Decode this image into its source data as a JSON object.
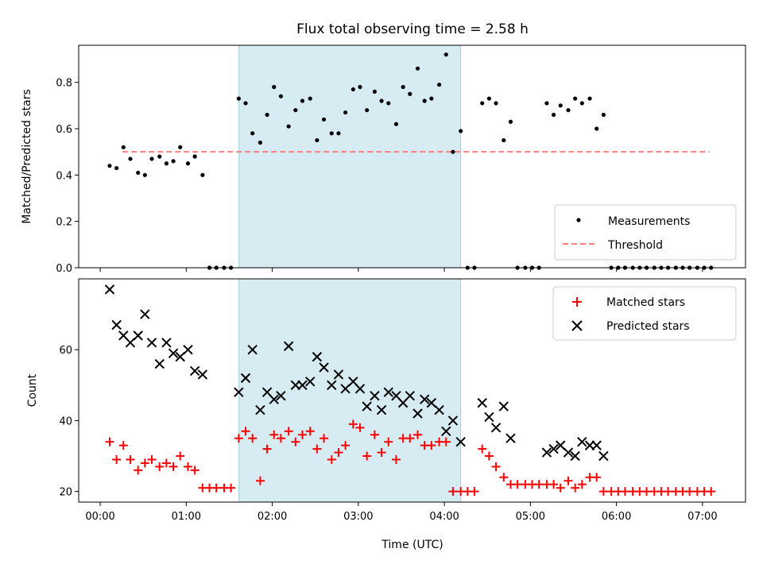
{
  "chart_data": [
    {
      "type": "scatter",
      "title": "Flux total observing time = 2.58 h",
      "xlabel": "",
      "ylabel": "Matched/Predicted stars",
      "ylim": [
        0,
        0.96
      ],
      "yticks": [
        "0.0",
        "0.2",
        "0.4",
        "0.6",
        "0.8"
      ],
      "highlight_span": {
        "x": [
          1.613,
          4.19
        ],
        "color": "#add8e6"
      },
      "legend": {
        "position": "lower-right"
      },
      "series": [
        {
          "name": "Measurements",
          "marker": "dot",
          "color": "#000000",
          "x": [
            0.11,
            0.19,
            0.27,
            0.35,
            0.44,
            0.52,
            0.6,
            0.69,
            0.77,
            0.85,
            0.93,
            1.02,
            1.1,
            1.19,
            1.27,
            1.35,
            1.44,
            1.52,
            1.61,
            1.69,
            1.77,
            1.86,
            1.94,
            2.02,
            2.1,
            2.19,
            2.27,
            2.35,
            2.44,
            2.52,
            2.6,
            2.69,
            2.77,
            2.85,
            2.94,
            3.02,
            3.1,
            3.19,
            3.27,
            3.35,
            3.44,
            3.52,
            3.6,
            3.69,
            3.77,
            3.85,
            3.94,
            4.02,
            4.1,
            4.19,
            4.27,
            4.35,
            4.44,
            4.52,
            4.6,
            4.69,
            4.77,
            4.85,
            4.94,
            5.02,
            5.1,
            5.19,
            5.27,
            5.35,
            5.44,
            5.52,
            5.6,
            5.69,
            5.77,
            5.85,
            5.94,
            6.02,
            6.1,
            6.19,
            6.27,
            6.35,
            6.44,
            6.52,
            6.6,
            6.69,
            6.77,
            6.85,
            6.94,
            7.02,
            7.1
          ],
          "y": [
            0.44,
            0.43,
            0.52,
            0.47,
            0.41,
            0.4,
            0.47,
            0.48,
            0.45,
            0.46,
            0.52,
            0.45,
            0.48,
            0.4,
            0,
            0,
            0,
            0,
            0.73,
            0.71,
            0.58,
            0.54,
            0.66,
            0.78,
            0.74,
            0.61,
            0.68,
            0.72,
            0.73,
            0.55,
            0.64,
            0.58,
            0.58,
            0.67,
            0.77,
            0.78,
            0.68,
            0.76,
            0.72,
            0.71,
            0.62,
            0.78,
            0.75,
            0.86,
            0.72,
            0.73,
            0.79,
            0.92,
            0.5,
            0.59,
            0,
            0,
            0.71,
            0.73,
            0.71,
            0.55,
            0.63,
            0,
            0,
            0,
            0,
            0.71,
            0.66,
            0.7,
            0.68,
            0.73,
            0.71,
            0.73,
            0.6,
            0.66,
            0,
            0,
            0,
            0,
            0,
            0,
            0,
            0,
            0,
            0,
            0,
            0,
            0,
            0,
            0
          ]
        },
        {
          "name": "Threshold",
          "marker": "dashed-line",
          "color": "#ff7f7f",
          "x": [
            0.26,
            7.08
          ],
          "y": [
            0.5,
            0.5
          ]
        }
      ]
    },
    {
      "type": "scatter",
      "title": "",
      "xlabel": "Time (UTC)",
      "ylabel": "Count",
      "xlim_hours": [
        -0.25,
        7.5
      ],
      "ylim": [
        17,
        80
      ],
      "xticks": [
        "00:00",
        "01:00",
        "02:00",
        "03:00",
        "04:00",
        "05:00",
        "06:00",
        "07:00"
      ],
      "yticks": [
        "20",
        "40",
        "60"
      ],
      "highlight_span": {
        "x": [
          1.613,
          4.19
        ],
        "color": "#add8e6"
      },
      "legend": {
        "position": "upper-right"
      },
      "series": [
        {
          "name": "Matched stars",
          "marker": "plus",
          "color": "#ff0000",
          "x": [
            0.11,
            0.19,
            0.27,
            0.35,
            0.44,
            0.52,
            0.6,
            0.69,
            0.77,
            0.85,
            0.93,
            1.02,
            1.1,
            1.19,
            1.27,
            1.35,
            1.44,
            1.52,
            1.61,
            1.69,
            1.77,
            1.86,
            1.94,
            2.02,
            2.1,
            2.19,
            2.27,
            2.35,
            2.44,
            2.52,
            2.6,
            2.69,
            2.77,
            2.85,
            2.94,
            3.02,
            3.1,
            3.19,
            3.27,
            3.35,
            3.44,
            3.52,
            3.6,
            3.69,
            3.77,
            3.85,
            3.94,
            4.02,
            4.1,
            4.19,
            4.27,
            4.35,
            4.44,
            4.52,
            4.6,
            4.69,
            4.77,
            4.85,
            4.94,
            5.02,
            5.1,
            5.19,
            5.27,
            5.35,
            5.44,
            5.52,
            5.6,
            5.69,
            5.77,
            5.85,
            5.94,
            6.02,
            6.1,
            6.19,
            6.27,
            6.35,
            6.44,
            6.52,
            6.6,
            6.69,
            6.77,
            6.85,
            6.94,
            7.02,
            7.1
          ],
          "y": [
            34,
            29,
            33,
            29,
            26,
            28,
            29,
            27,
            28,
            27,
            30,
            27,
            26,
            21,
            21,
            21,
            21,
            21,
            35,
            37,
            35,
            23,
            32,
            36,
            35,
            37,
            34,
            36,
            37,
            32,
            35,
            29,
            31,
            33,
            39,
            38,
            30,
            36,
            31,
            34,
            29,
            35,
            35,
            36,
            33,
            33,
            34,
            34,
            20,
            20,
            20,
            20,
            32,
            30,
            27,
            24,
            22,
            22,
            22,
            22,
            22,
            22,
            22,
            21,
            23,
            21,
            22,
            24,
            24,
            20,
            20,
            20,
            20,
            20,
            20,
            20,
            20,
            20,
            20,
            20,
            20,
            20,
            20,
            20,
            20
          ]
        },
        {
          "name": "Predicted stars",
          "marker": "x",
          "color": "#000000",
          "x": [
            0.11,
            0.19,
            0.27,
            0.35,
            0.44,
            0.52,
            0.6,
            0.69,
            0.77,
            0.85,
            0.93,
            1.02,
            1.1,
            1.19,
            1.61,
            1.69,
            1.77,
            1.86,
            1.94,
            2.02,
            2.1,
            2.19,
            2.27,
            2.35,
            2.44,
            2.52,
            2.6,
            2.69,
            2.77,
            2.85,
            2.94,
            3.02,
            3.1,
            3.19,
            3.27,
            3.35,
            3.44,
            3.52,
            3.6,
            3.69,
            3.77,
            3.85,
            3.94,
            4.02,
            4.1,
            4.19,
            4.44,
            4.52,
            4.6,
            4.69,
            4.77,
            5.19,
            5.27,
            5.35,
            5.44,
            5.52,
            5.6,
            5.69,
            5.77,
            5.85
          ],
          "y": [
            77,
            67,
            64,
            62,
            64,
            70,
            62,
            56,
            62,
            59,
            58,
            60,
            54,
            53,
            48,
            52,
            60,
            43,
            48,
            46,
            47,
            61,
            50,
            50,
            51,
            58,
            55,
            50,
            53,
            49,
            51,
            49,
            44,
            47,
            43,
            48,
            47,
            45,
            47,
            42,
            46,
            45,
            43,
            37,
            40,
            34,
            45,
            41,
            38,
            44,
            35,
            31,
            32,
            33,
            31,
            30,
            34,
            33,
            33,
            30
          ]
        }
      ]
    }
  ]
}
